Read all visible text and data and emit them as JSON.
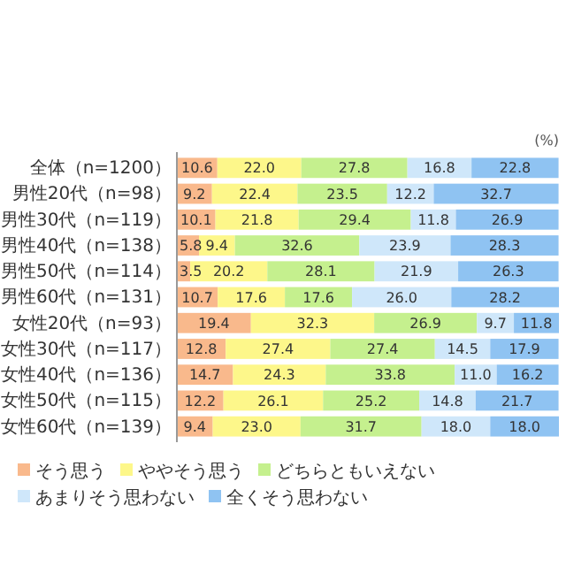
{
  "chart_data": {
    "type": "bar",
    "orientation": "horizontal",
    "stacked": true,
    "legend": "bottom",
    "annotations": [
      "(%)"
    ],
    "categories": [
      "全体（n=1200）",
      "男性20代（n=98）",
      "男性30代（n=119）",
      "男性40代（n=138）",
      "男性50代（n=114）",
      "男性60代（n=131）",
      "女性20代（n=93）",
      "女性30代（n=117）",
      "女性40代（n=136）",
      "女性50代（n=115）",
      "女性60代（n=139）"
    ],
    "series": [
      {
        "name": "そう思う",
        "color": "#f9b98c",
        "values": [
          10.6,
          9.2,
          10.1,
          5.8,
          3.5,
          10.7,
          19.4,
          12.8,
          14.7,
          12.2,
          9.4
        ],
        "value_labels": [
          "10.6",
          "9.2",
          "10.1",
          "5.8",
          "3.5",
          "10.7",
          "19.4",
          "12.8",
          "14.7",
          "12.2",
          "9.4"
        ]
      },
      {
        "name": "ややそう思う",
        "color": "#fdf78a",
        "values": [
          22.0,
          22.4,
          21.8,
          9.4,
          20.2,
          17.6,
          32.3,
          27.4,
          24.3,
          26.1,
          23.0
        ],
        "value_labels": [
          "22.0",
          "22.4",
          "21.8",
          "9.4",
          "20.2",
          "17.6",
          "32.3",
          "27.4",
          "24.3",
          "26.1",
          "23.0"
        ]
      },
      {
        "name": "どちらともいえない",
        "color": "#c5f08e",
        "values": [
          27.8,
          23.5,
          29.4,
          32.6,
          28.1,
          17.6,
          26.9,
          27.4,
          33.8,
          25.2,
          31.7
        ],
        "value_labels": [
          "27.8",
          "23.5",
          "29.4",
          "32.6",
          "28.1",
          "17.6",
          "26.9",
          "27.4",
          "33.8",
          "25.2",
          "31.7"
        ]
      },
      {
        "name": "あまりそう思わない",
        "color": "#cfe7fa",
        "values": [
          16.8,
          12.2,
          11.8,
          23.9,
          21.9,
          26.0,
          9.7,
          14.5,
          11.0,
          14.8,
          18.0
        ],
        "value_labels": [
          "16.8",
          "12.2",
          "11.8",
          "23.9",
          "21.9",
          "26.0",
          "9.7",
          "14.5",
          "11.0",
          "14.8",
          "18.0"
        ]
      },
      {
        "name": "全くそう思わない",
        "color": "#8fc3f2",
        "values": [
          22.8,
          32.7,
          26.9,
          28.3,
          26.3,
          28.2,
          11.8,
          17.9,
          16.2,
          21.7,
          18.0
        ],
        "value_labels": [
          "22.8",
          "32.7",
          "26.9",
          "28.3",
          "26.3",
          "28.2",
          "11.8",
          "17.9",
          "16.2",
          "21.7",
          "18.0"
        ]
      }
    ]
  }
}
